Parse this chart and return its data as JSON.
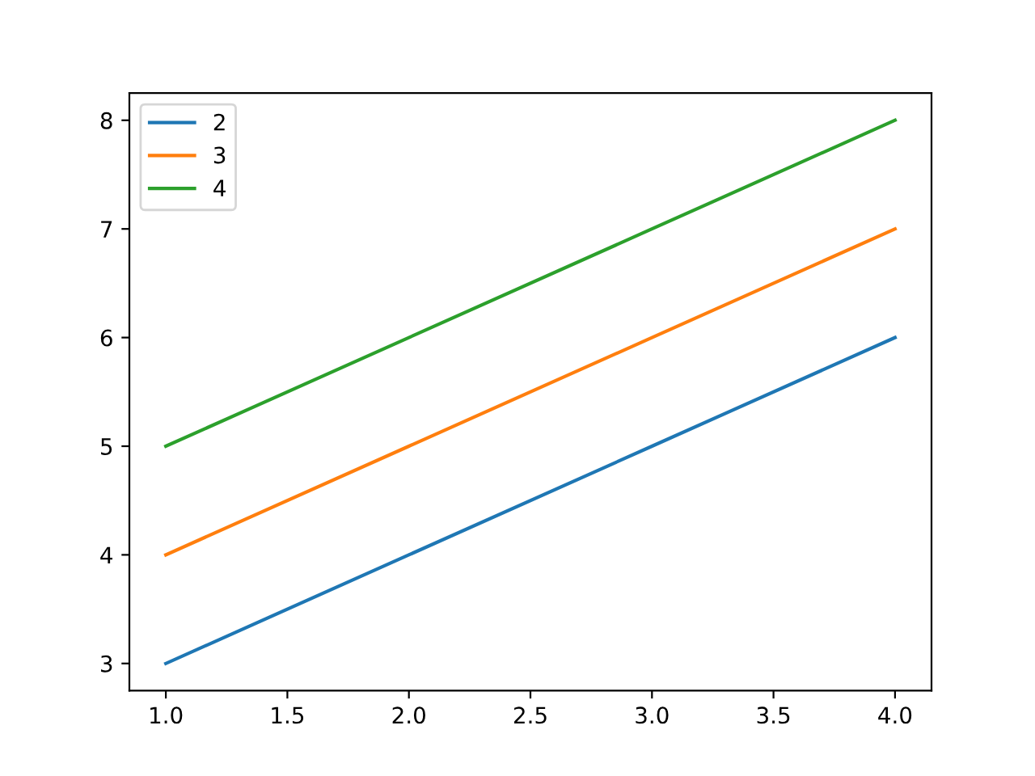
{
  "chart_data": {
    "type": "line",
    "x": [
      1,
      2,
      3,
      4
    ],
    "series": [
      {
        "name": "2",
        "color": "#1f77b4",
        "values": [
          3,
          4,
          5,
          6
        ]
      },
      {
        "name": "3",
        "color": "#ff7f0e",
        "values": [
          4,
          5,
          6,
          7
        ]
      },
      {
        "name": "4",
        "color": "#2ca02c",
        "values": [
          5,
          6,
          7,
          8
        ]
      }
    ],
    "xlim": [
      0.85,
      4.15
    ],
    "xticks": [
      {
        "value": 1,
        "label": "1.0"
      },
      {
        "value": 1.5,
        "label": "1.5"
      },
      {
        "value": 2,
        "label": "2.0"
      },
      {
        "value": 2.5,
        "label": "2.5"
      },
      {
        "value": 3,
        "label": "3.0"
      },
      {
        "value": 3.5,
        "label": "3.5"
      },
      {
        "value": 4,
        "label": "4.0"
      }
    ],
    "ylim": [
      2.75,
      8.25
    ],
    "yticks": [
      3,
      4,
      5,
      6,
      7,
      8
    ],
    "grid": false,
    "legend": "top left",
    "marker": "none",
    "line_style": "solid"
  }
}
